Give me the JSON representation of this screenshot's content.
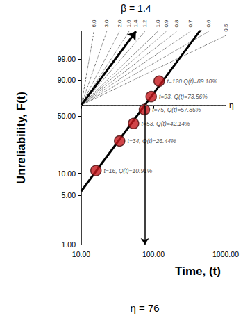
{
  "chart_data": {
    "type": "scatter",
    "x_label": "Time, (t)",
    "y_label": "Unreliability, F(t)",
    "x": [
      16,
      34,
      53,
      75,
      93,
      120
    ],
    "values": [
      10.91,
      26.44,
      42.14,
      57.86,
      73.56,
      89.1
    ],
    "value_labels": [
      "t=16, Q(t)=10.91%",
      "t=34, Q(t)=26.44%",
      "t=53, Q(t)=42.14%",
      "t=75, Q(t)=57.86%",
      "t=93, Q(t)=73.56%",
      "t=120 Q(t)=89.10%"
    ],
    "data_labels": true,
    "color": "#c4161c",
    "marker": "circle",
    "log": "x",
    "xlim": [
      10,
      1000
    ],
    "xticks": [
      {
        "value": 10,
        "label": "10.00"
      },
      {
        "value": 100,
        "label": "100.00"
      },
      {
        "value": 1000,
        "label": "1000.00"
      }
    ],
    "ylim": [
      1,
      99.999
    ],
    "yticks": [
      {
        "value": 1,
        "label": "1.00"
      },
      {
        "value": 5,
        "label": "5.00"
      },
      {
        "value": 10,
        "label": "10.00"
      },
      {
        "value": 50,
        "label": "50.00"
      },
      {
        "value": 90,
        "label": "90.00"
      },
      {
        "value": 99,
        "label": "99.00"
      }
    ],
    "grid": false,
    "fit": {
      "beta": 1.4,
      "eta": 76,
      "label": "β = 1.4",
      "eta_label": "η = 76",
      "eta_line_label": "η",
      "color": "#000000"
    },
    "beta_scale": [
      {
        "value": 6,
        "label": "6.0"
      },
      {
        "value": 3,
        "label": "3.0"
      },
      {
        "value": 2,
        "label": "2.0"
      },
      1.6,
      1.4,
      1.2,
      {
        "value": 1,
        "label": "1.0"
      },
      0.9,
      0.8,
      0.7,
      0.6,
      0.5
    ]
  }
}
